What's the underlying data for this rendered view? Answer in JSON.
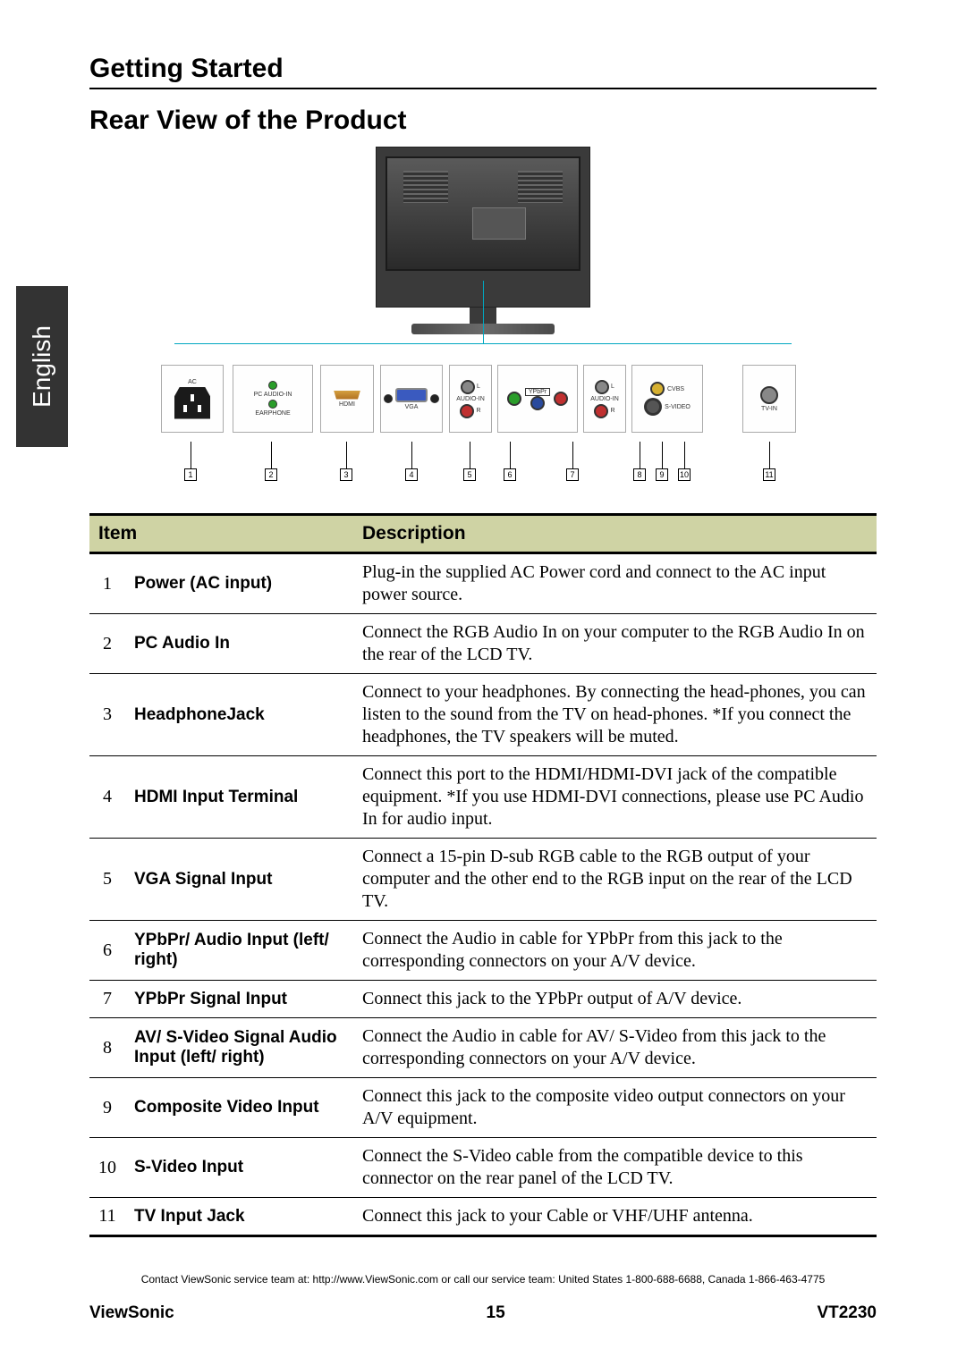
{
  "language_tab": "English",
  "section_title": "Getting Started",
  "subsection_title": "Rear View of the Product",
  "diagram": {
    "colors": {
      "leader_line": "#00a7c0",
      "tv_body": "#3a3a3a",
      "panel_border": "#aaaaaa"
    },
    "port_labels": {
      "ac": "AC",
      "pc_audio_in": "PC AUDIO-IN",
      "earphone": "EARPHONE",
      "hdmi": "HDMI",
      "vga": "VGA",
      "audio_in_1": "AUDIO-IN",
      "ypbpr": "YPbPr",
      "audio_in_2": "AUDIO-IN",
      "cvbs": "CVBS",
      "svideo": "S-VIDEO",
      "tvin": "TV-IN",
      "l": "L",
      "r": "R"
    },
    "callouts": [
      "1",
      "2",
      "3",
      "4",
      "5",
      "6",
      "7",
      "8",
      "9",
      "10",
      "11"
    ]
  },
  "table": {
    "header_bg": "#cfd3a4",
    "border_color": "#000000",
    "columns": [
      "Item",
      "Description"
    ],
    "rows": [
      {
        "num": "1",
        "name": "Power (AC input)",
        "desc": "Plug-in the supplied AC Power cord and connect to the AC input power source."
      },
      {
        "num": "2",
        "name": "PC Audio In",
        "desc": "Connect the RGB Audio In on your computer to the RGB Audio In on the rear of the LCD TV."
      },
      {
        "num": "3",
        "name": "HeadphoneJack",
        "desc": "Connect to your headphones. By connecting the head-phones, you can listen to the sound from the TV on head-phones. *If you connect the headphones, the TV speakers will be muted."
      },
      {
        "num": "4",
        "name": "HDMI Input Terminal",
        "desc": "Connect this port to the HDMI/HDMI-DVI jack of the compatible equipment. *If you use HDMI-DVI connections, please use PC Audio In for audio input."
      },
      {
        "num": "5",
        "name": "VGA Signal Input",
        "desc": "Connect a 15-pin D-sub RGB cable to the RGB output of your computer and the other end to the RGB input on the rear of the LCD TV."
      },
      {
        "num": "6",
        "name": "YPbPr/ Audio Input (left/ right)",
        "desc": "Connect the Audio in cable for YPbPr from this jack to the corresponding connectors on your A/V device."
      },
      {
        "num": "7",
        "name": "YPbPr Signal Input",
        "desc": "Connect this jack to the YPbPr output of A/V device."
      },
      {
        "num": "8",
        "name": "AV/ S-Video Signal Audio Input (left/ right)",
        "desc": "Connect the Audio in cable for AV/ S-Video from this jack to the corresponding connectors on your A/V device."
      },
      {
        "num": "9",
        "name": "Composite Video Input",
        "desc": "Connect this jack to the composite video output connectors on your A/V equipment."
      },
      {
        "num": "10",
        "name": "S-Video Input",
        "desc": "Connect the S-Video cable from the compatible device to this connector on the rear panel of the LCD TV."
      },
      {
        "num": "11",
        "name": "TV Input Jack",
        "desc": "Connect this jack to your Cable or VHF/UHF antenna."
      }
    ]
  },
  "contact_line": "Contact ViewSonic service team at: http://www.ViewSonic.com or call our service team: United States 1-800-688-6688, Canada 1-866-463-4775",
  "footer": {
    "brand": "ViewSonic",
    "page_number": "15",
    "model": "VT2230"
  }
}
